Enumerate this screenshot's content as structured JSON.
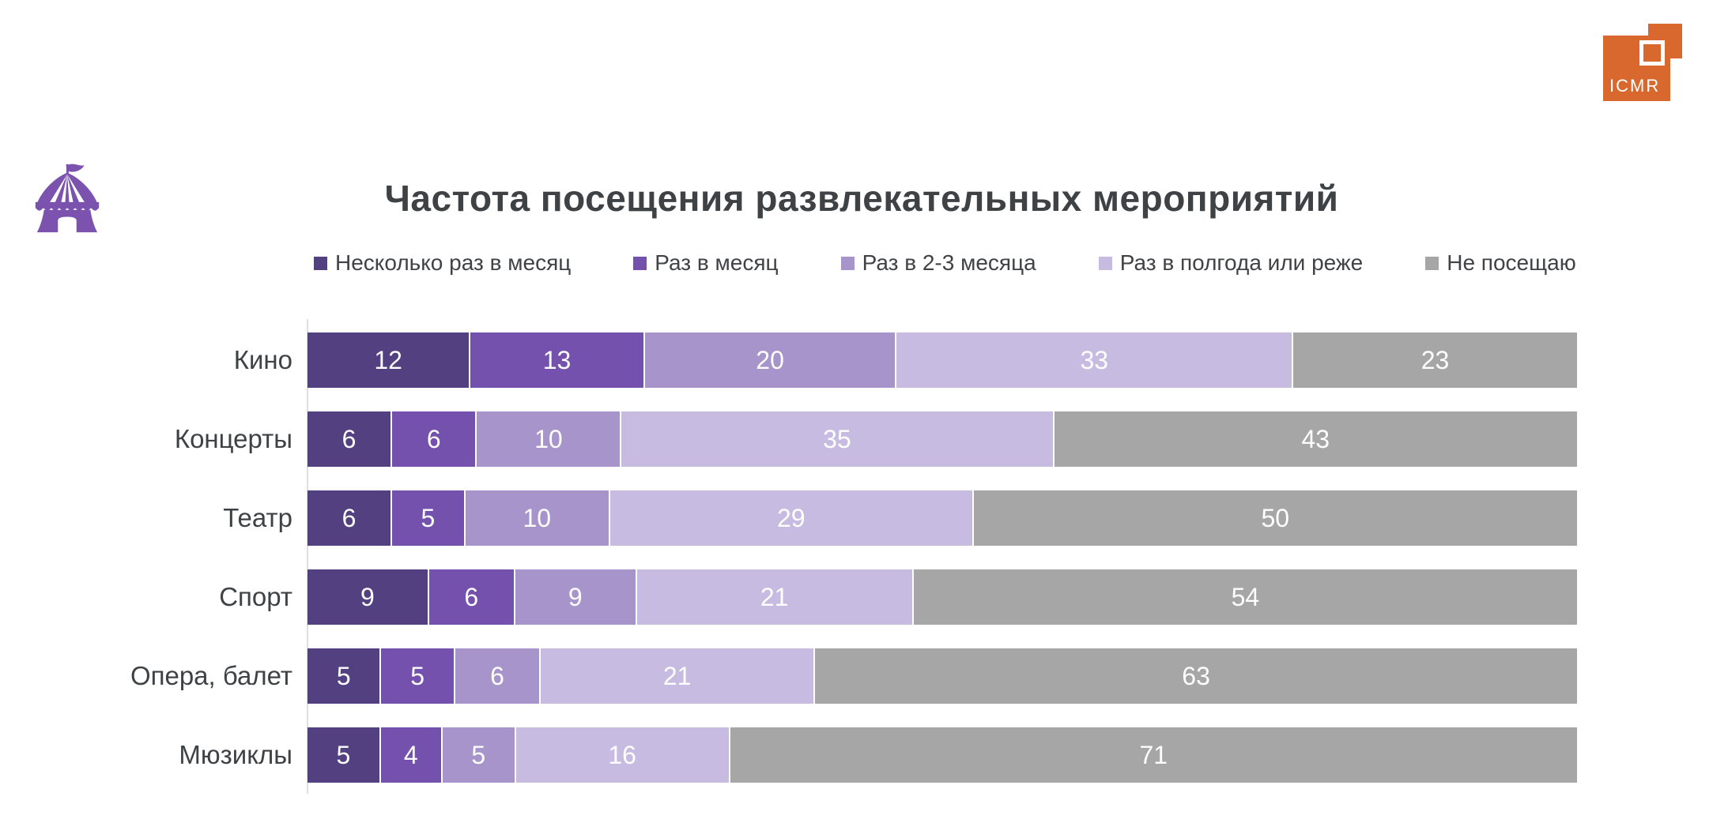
{
  "logo": {
    "text": "ICMR",
    "color": "#d8682e"
  },
  "icons": {
    "tent_color": "#7b52ae"
  },
  "chart_data": {
    "type": "bar",
    "variant": "stacked-100",
    "orientation": "horizontal",
    "title": "Частота посещения развлекательных мероприятий",
    "categories": [
      "Кино",
      "Концерты",
      "Театр",
      "Спорт",
      "Опера, балет",
      "Мюзиклы"
    ],
    "series": [
      {
        "name": "Несколько раз в месяц",
        "color": "#534080",
        "values": [
          12,
          6,
          6,
          9,
          5,
          5
        ]
      },
      {
        "name": "Раз в месяц",
        "color": "#7451ac",
        "values": [
          13,
          6,
          5,
          6,
          5,
          4
        ]
      },
      {
        "name": "Раз в 2-3 месяца",
        "color": "#a794cb",
        "values": [
          20,
          10,
          10,
          9,
          6,
          5
        ]
      },
      {
        "name": "Раз в полгода или реже",
        "color": "#c8bbe1",
        "values": [
          33,
          35,
          29,
          21,
          21,
          16
        ]
      },
      {
        "name": "Не посещаю",
        "color": "#a6a6a6",
        "values": [
          23,
          43,
          50,
          54,
          63,
          71
        ]
      }
    ],
    "legend_position": "top",
    "value_labels_color": "#ffffff",
    "xlim_percent": [
      0,
      100
    ],
    "grid": false
  }
}
